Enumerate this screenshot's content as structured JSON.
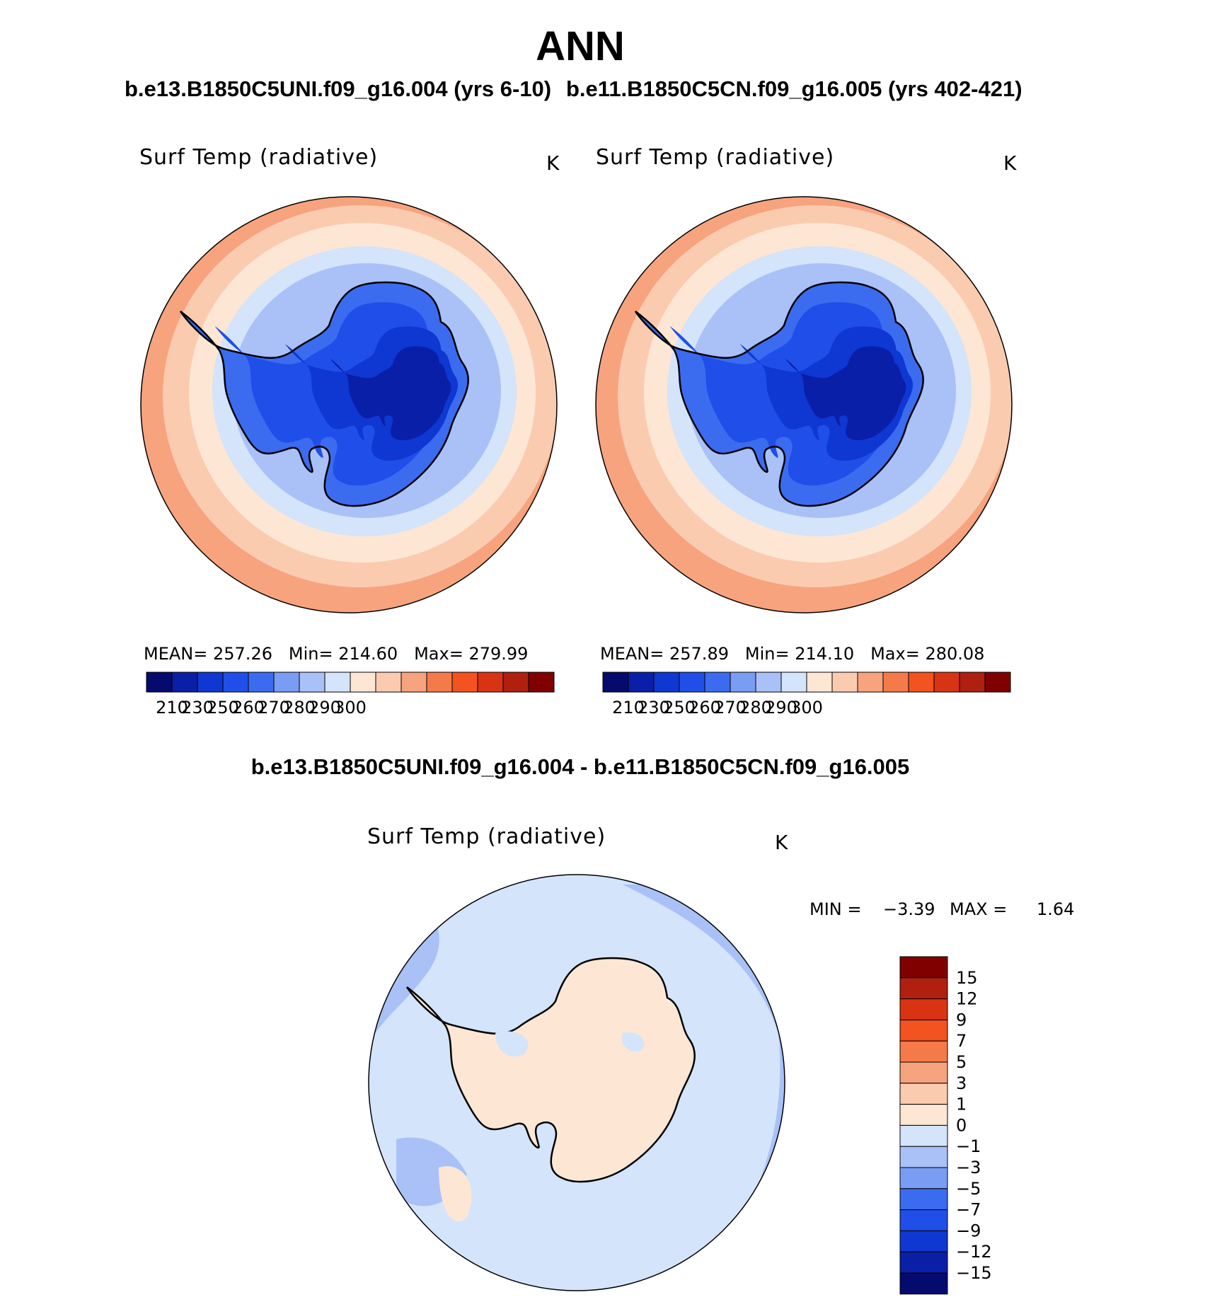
{
  "title": "ANN",
  "panels": [
    {
      "case_title": "b.e13.B1850C5UNI.f09_g16.004 (yrs 6-10)",
      "variable": "Surf Temp (radiative)",
      "unit": "K",
      "stats": {
        "mean_label": "MEAN=",
        "mean": "257.26",
        "min_label": "Min=",
        "min": "214.60",
        "max_label": "Max=",
        "max": "279.99"
      }
    },
    {
      "case_title": "b.e11.B1850C5CN.f09_g16.005 (yrs 402-421)",
      "variable": "Surf Temp (radiative)",
      "unit": "K",
      "stats": {
        "mean_label": "MEAN=",
        "mean": "257.89",
        "min_label": "Min=",
        "min": "214.10",
        "max_label": "Max=",
        "max": "280.08"
      }
    }
  ],
  "abs_colorbar": {
    "ticks": [
      "210",
      "230",
      "250",
      "260",
      "270",
      "280",
      "290",
      "300"
    ],
    "colors": [
      "#050a6e",
      "#0a1fa8",
      "#0f37d2",
      "#1f4fe8",
      "#3b6cf0",
      "#7a9df4",
      "#a9c1f7",
      "#d3e4fb",
      "#fde6d4",
      "#fbcbb0",
      "#f7a37d",
      "#f57a4a",
      "#f2531f",
      "#d83414",
      "#b0200f",
      "#800000"
    ]
  },
  "diff": {
    "title": "b.e13.B1850C5UNI.f09_g16.004 - b.e11.B1850C5CN.f09_g16.005",
    "variable": "Surf Temp (radiative)",
    "unit": "K",
    "min_label": "MIN =",
    "min": "−3.39",
    "max_label": "MAX =",
    "max": "1.64",
    "colorbar_ticks": [
      "15",
      "12",
      "9",
      "7",
      "5",
      "3",
      "1",
      "0",
      "−1",
      "−3",
      "−5",
      "−7",
      "−9",
      "−12",
      "−15"
    ],
    "colorbar_colors": [
      "#800000",
      "#b0200f",
      "#d83414",
      "#f2531f",
      "#f57a4a",
      "#f7a37d",
      "#fbcbb0",
      "#fde6d4",
      "#d3e4fb",
      "#a9c1f7",
      "#7a9df4",
      "#3b6cf0",
      "#1f4fe8",
      "#0f37d2",
      "#0a1fa8",
      "#050a6e"
    ]
  }
}
